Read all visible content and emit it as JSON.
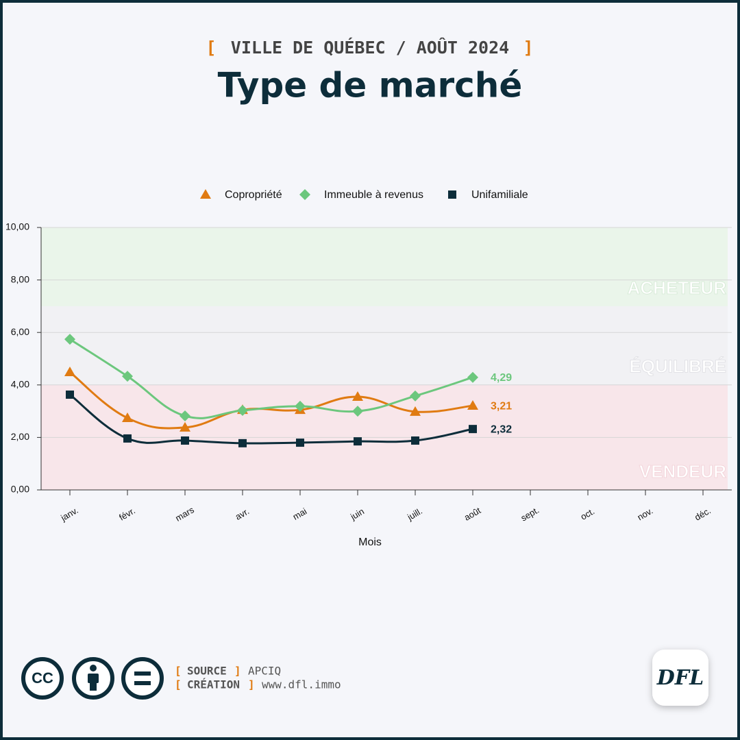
{
  "header": {
    "bracket_open": "[",
    "subtitle": "VILLE DE QUÉBEC / AOÛT 2024",
    "bracket_close": "]",
    "title": "Type de marché"
  },
  "chart_data": {
    "type": "line",
    "categories": [
      "janv.",
      "févr.",
      "mars",
      "avr.",
      "mai",
      "juin",
      "juill.",
      "août",
      "sept.",
      "oct.",
      "nov.",
      "déc."
    ],
    "series": [
      {
        "name": "Copropriété",
        "color": "#e07b12",
        "marker": "triangle",
        "values": [
          4.49,
          2.74,
          2.38,
          3.05,
          3.05,
          3.55,
          2.98,
          3.21,
          null,
          null,
          null,
          null
        ],
        "value_labels": [
          null,
          null,
          null,
          null,
          null,
          null,
          null,
          "3,21",
          null,
          null,
          null,
          null
        ]
      },
      {
        "name": "Immeuble à revenus",
        "color": "#6cc77d",
        "marker": "diamond",
        "values": [
          5.74,
          4.33,
          2.82,
          3.03,
          3.19,
          3.0,
          3.58,
          4.29,
          null,
          null,
          null,
          null
        ],
        "value_labels": [
          null,
          null,
          null,
          null,
          null,
          null,
          null,
          "4,29",
          null,
          null,
          null,
          null
        ]
      },
      {
        "name": "Unifamiliale",
        "color": "#0d2d3a",
        "marker": "square",
        "values": [
          3.63,
          1.96,
          1.88,
          1.78,
          1.8,
          1.85,
          1.88,
          2.32,
          null,
          null,
          null,
          null
        ],
        "value_labels": [
          null,
          null,
          null,
          null,
          null,
          null,
          null,
          "2,32",
          null,
          null,
          null,
          null
        ]
      }
    ],
    "ylim": [
      0,
      10
    ],
    "yticks": [
      {
        "value": 0,
        "label": "0,00"
      },
      {
        "value": 2,
        "label": "2,00"
      },
      {
        "value": 4,
        "label": "4,00"
      },
      {
        "value": 6,
        "label": "6,00"
      },
      {
        "value": 8,
        "label": "8,00"
      },
      {
        "value": 10,
        "label": "10,00"
      }
    ],
    "grid": true,
    "legend": "top",
    "xlabel": "Mois",
    "zones": [
      {
        "label": "VENDEUR",
        "from": 0,
        "to": 4,
        "color": "#f8e6ea"
      },
      {
        "label": "ÉQUILIBRÉ",
        "from": 4,
        "to": 7,
        "color": "#f1f1f4"
      },
      {
        "label": "ACHETEUR",
        "from": 7,
        "to": 10,
        "color": "#eaf5ea"
      }
    ]
  },
  "footer": {
    "license": "CC",
    "source_key": "SOURCE",
    "source": "APCIQ",
    "creation_key": "CRÉATION",
    "creation": "www.dfl.immo",
    "logo": "DFL"
  }
}
